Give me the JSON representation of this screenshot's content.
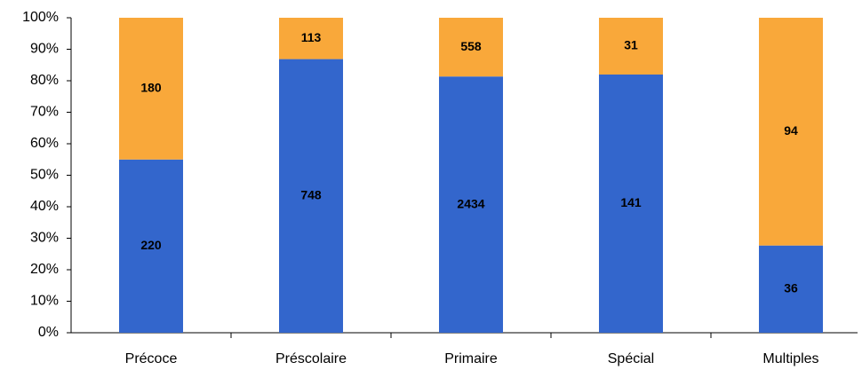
{
  "chart_data": {
    "type": "bar",
    "stacking": "percent",
    "categories": [
      "Précoce",
      "Préscolaire",
      "Primaire",
      "Spécial",
      "Multiples"
    ],
    "series": [
      {
        "color": "#3366cc",
        "values": [
          220,
          748,
          2434,
          141,
          36
        ]
      },
      {
        "color": "#f9a83a",
        "values": [
          180,
          113,
          558,
          31,
          94
        ]
      }
    ],
    "ylim": [
      0,
      100
    ],
    "yticks": [
      {
        "value": 0,
        "label": "0%"
      },
      {
        "value": 10,
        "label": "10%"
      },
      {
        "value": 20,
        "label": "20%"
      },
      {
        "value": 30,
        "label": "30%"
      },
      {
        "value": 40,
        "label": "40%"
      },
      {
        "value": 50,
        "label": "50%"
      },
      {
        "value": 60,
        "label": "60%"
      },
      {
        "value": 70,
        "label": "70%"
      },
      {
        "value": 80,
        "label": "80%"
      },
      {
        "value": 90,
        "label": "90%"
      },
      {
        "value": 100,
        "label": "100%"
      }
    ],
    "grid": false
  }
}
